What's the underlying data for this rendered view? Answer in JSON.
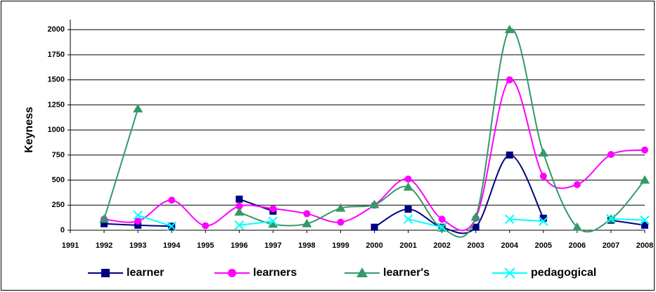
{
  "chart_data": {
    "type": "line",
    "y_label": "Keyness",
    "categories": [
      "1991",
      "1992",
      "1993",
      "1994",
      "1995",
      "1996",
      "1997",
      "1998",
      "1999",
      "2000",
      "2001",
      "2002",
      "2003",
      "2004",
      "2005",
      "2006",
      "2007",
      "2008"
    ],
    "series": [
      {
        "name": "learner",
        "color": "#000080",
        "marker": "square",
        "values": [
          null,
          65,
          50,
          40,
          null,
          310,
          190,
          null,
          null,
          30,
          210,
          30,
          30,
          750,
          120,
          null,
          100,
          50
        ]
      },
      {
        "name": "learners",
        "color": "#ff00ff",
        "marker": "circle",
        "values": [
          null,
          110,
          90,
          300,
          45,
          240,
          215,
          165,
          80,
          250,
          510,
          110,
          120,
          1500,
          540,
          455,
          755,
          800
        ]
      },
      {
        "name": "learner's",
        "color": "#339966",
        "marker": "triangle",
        "values": [
          null,
          110,
          1210,
          null,
          null,
          180,
          60,
          65,
          220,
          255,
          430,
          20,
          130,
          2000,
          770,
          30,
          110,
          500
        ]
      },
      {
        "name": "pedagogical",
        "color": "#00ffff",
        "marker": "cross",
        "values": [
          null,
          null,
          150,
          40,
          null,
          50,
          90,
          null,
          null,
          null,
          110,
          30,
          null,
          110,
          90,
          null,
          115,
          100
        ]
      }
    ],
    "ylim": [
      0,
      2100
    ],
    "yticks": [
      0,
      250,
      500,
      750,
      1000,
      1250,
      1500,
      1750,
      2000
    ],
    "grid": true,
    "legend": "bottom"
  }
}
